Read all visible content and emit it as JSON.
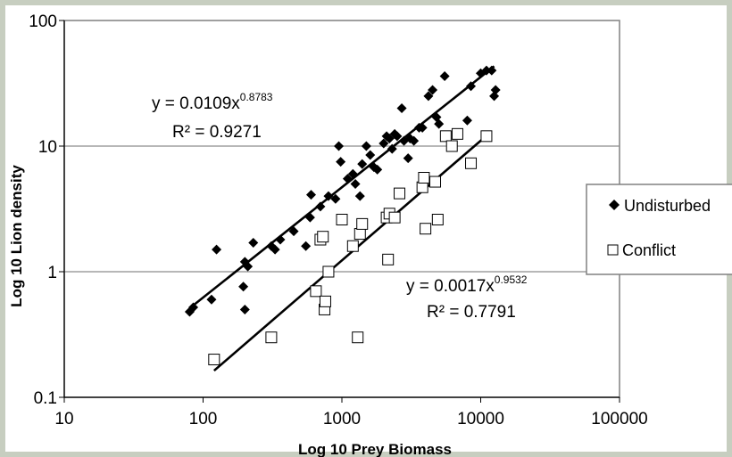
{
  "chart_data": {
    "type": "scatter",
    "xlabel": "Log 10 Prey Biomass",
    "ylabel": "Log 10 Lion density",
    "x_scale": "log",
    "y_scale": "log",
    "xlim": [
      10,
      100000
    ],
    "ylim": [
      0.1,
      100
    ],
    "x_ticks": [
      "10",
      "100",
      "1000",
      "10000",
      "100000"
    ],
    "y_ticks": [
      "0.1",
      "1",
      "10",
      "100"
    ],
    "grid": "horizontal",
    "legend_position": "right",
    "series": [
      {
        "name": "Undisturbed",
        "marker": "diamond-filled",
        "color": "#000000",
        "trendline": {
          "a": 0.0109,
          "b": 0.8783,
          "x_range": [
            80,
            12500
          ]
        },
        "equation_lines": [
          "y = 0.0109x",
          "0.8783",
          "R² = 0.9271"
        ],
        "points": [
          [
            80,
            0.48
          ],
          [
            85,
            0.52
          ],
          [
            115,
            0.6
          ],
          [
            125,
            1.5
          ],
          [
            195,
            0.76
          ],
          [
            200,
            0.5
          ],
          [
            200,
            1.2
          ],
          [
            210,
            1.1
          ],
          [
            230,
            1.7
          ],
          [
            310,
            1.6
          ],
          [
            330,
            1.5
          ],
          [
            360,
            1.8
          ],
          [
            450,
            2.1
          ],
          [
            550,
            1.6
          ],
          [
            590,
            2.7
          ],
          [
            600,
            4.1
          ],
          [
            700,
            3.3
          ],
          [
            800,
            4.0
          ],
          [
            900,
            3.8
          ],
          [
            950,
            10
          ],
          [
            980,
            7.5
          ],
          [
            1100,
            5.5
          ],
          [
            1200,
            6.0
          ],
          [
            1250,
            5.0
          ],
          [
            1350,
            4.0
          ],
          [
            1400,
            7.2
          ],
          [
            1500,
            10
          ],
          [
            1600,
            8.5
          ],
          [
            1700,
            6.8
          ],
          [
            1800,
            6.5
          ],
          [
            2000,
            10.5
          ],
          [
            2100,
            12
          ],
          [
            2200,
            11.5
          ],
          [
            2300,
            9.5
          ],
          [
            2400,
            12.5
          ],
          [
            2500,
            12
          ],
          [
            2700,
            20
          ],
          [
            2800,
            11
          ],
          [
            3000,
            8
          ],
          [
            3100,
            11.5
          ],
          [
            3300,
            11
          ],
          [
            3600,
            14
          ],
          [
            3800,
            14
          ],
          [
            4200,
            25
          ],
          [
            4500,
            28
          ],
          [
            4800,
            17
          ],
          [
            5000,
            15
          ],
          [
            5500,
            36
          ],
          [
            8000,
            16
          ],
          [
            8500,
            30
          ],
          [
            10000,
            38
          ],
          [
            11000,
            40
          ],
          [
            12000,
            40
          ],
          [
            12500,
            25
          ],
          [
            12800,
            28
          ]
        ]
      },
      {
        "name": "Conflict",
        "marker": "square-open",
        "color": "#000000",
        "trendline": {
          "a": 0.0017,
          "b": 0.9532,
          "x_range": [
            120,
            11000
          ]
        },
        "equation_lines": [
          "y = 0.0017x",
          "0.9532",
          "R² = 0.7791"
        ],
        "points": [
          [
            120,
            0.2
          ],
          [
            310,
            0.3
          ],
          [
            650,
            0.7
          ],
          [
            700,
            1.8
          ],
          [
            730,
            1.9
          ],
          [
            750,
            0.5
          ],
          [
            760,
            0.58
          ],
          [
            800,
            1.0
          ],
          [
            1000,
            2.6
          ],
          [
            1200,
            1.6
          ],
          [
            1300,
            0.3
          ],
          [
            1350,
            2.0
          ],
          [
            1400,
            2.4
          ],
          [
            2100,
            2.7
          ],
          [
            2150,
            1.25
          ],
          [
            2200,
            2.9
          ],
          [
            2400,
            2.7
          ],
          [
            2600,
            4.2
          ],
          [
            3800,
            4.7
          ],
          [
            3900,
            5.6
          ],
          [
            4000,
            2.2
          ],
          [
            4700,
            5.2
          ],
          [
            4900,
            2.6
          ],
          [
            5600,
            12
          ],
          [
            6200,
            10
          ],
          [
            6800,
            12.5
          ],
          [
            8500,
            7.3
          ],
          [
            11000,
            12
          ]
        ]
      }
    ]
  }
}
